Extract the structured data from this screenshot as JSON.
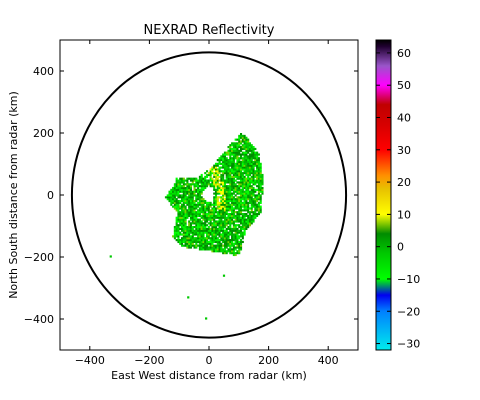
{
  "chart_data": {
    "type": "heatmap",
    "title": "NEXRAD Reflectivity",
    "xlabel": "East West distance from radar (km)",
    "ylabel": "North South distance from radar (km)",
    "xlim": [
      -500,
      500
    ],
    "ylim": [
      -500,
      500
    ],
    "x_ticks": [
      -400,
      -200,
      0,
      200,
      400
    ],
    "y_ticks": [
      -400,
      -200,
      0,
      200,
      400
    ],
    "x_tick_labels": [
      "−400",
      "−200",
      "0",
      "200",
      "400"
    ],
    "y_tick_labels": [
      "−400",
      "−200",
      "0",
      "200",
      "400"
    ],
    "range_ring_radius_km": 460,
    "colorbar": {
      "min": -32,
      "max": 64,
      "ticks": [
        60,
        50,
        40,
        30,
        20,
        10,
        0,
        -10,
        -20,
        -30
      ],
      "tick_labels": [
        "60",
        "50",
        "40",
        "30",
        "20",
        "10",
        "0",
        "−10",
        "−20",
        "−30"
      ],
      "colormap": "NWSRef",
      "color_stops": [
        {
          "value": -32,
          "color": "#00ecec"
        },
        {
          "value": -20,
          "color": "#0080ff"
        },
        {
          "value": -15,
          "color": "#0000f0"
        },
        {
          "value": -10,
          "color": "#00ff00"
        },
        {
          "value": -2,
          "color": "#00c800"
        },
        {
          "value": 4,
          "color": "#008c00"
        },
        {
          "value": 10,
          "color": "#ffff00"
        },
        {
          "value": 18,
          "color": "#e7c000"
        },
        {
          "value": 22,
          "color": "#ff9000"
        },
        {
          "value": 30,
          "color": "#ff0000"
        },
        {
          "value": 38,
          "color": "#d60000"
        },
        {
          "value": 44,
          "color": "#c00000"
        },
        {
          "value": 50,
          "color": "#ff00ff"
        },
        {
          "value": 56,
          "color": "#9955c9"
        },
        {
          "value": 62,
          "color": "#200030"
        },
        {
          "value": 64,
          "color": "#000000"
        }
      ]
    },
    "echo_region": {
      "description_points_km": [
        [
          -110,
          55
        ],
        [
          -50,
          50
        ],
        [
          0,
          80
        ],
        [
          60,
          150
        ],
        [
          110,
          200
        ],
        [
          165,
          130
        ],
        [
          180,
          40
        ],
        [
          170,
          -60
        ],
        [
          120,
          -120
        ],
        [
          100,
          -200
        ],
        [
          40,
          -190
        ],
        [
          -20,
          -180
        ],
        [
          -90,
          -170
        ],
        [
          -125,
          -140
        ],
        [
          -110,
          -60
        ],
        [
          -150,
          -10
        ],
        [
          -120,
          30
        ]
      ],
      "isolated_points_km": [
        [
          -330,
          -198
        ],
        [
          -70,
          -330
        ],
        [
          -10,
          -398
        ],
        [
          50,
          -260
        ]
      ],
      "bright_band_km": [
        [
          0,
          90
        ],
        [
          20,
          60
        ],
        [
          35,
          20
        ],
        [
          40,
          -40
        ]
      ]
    }
  }
}
